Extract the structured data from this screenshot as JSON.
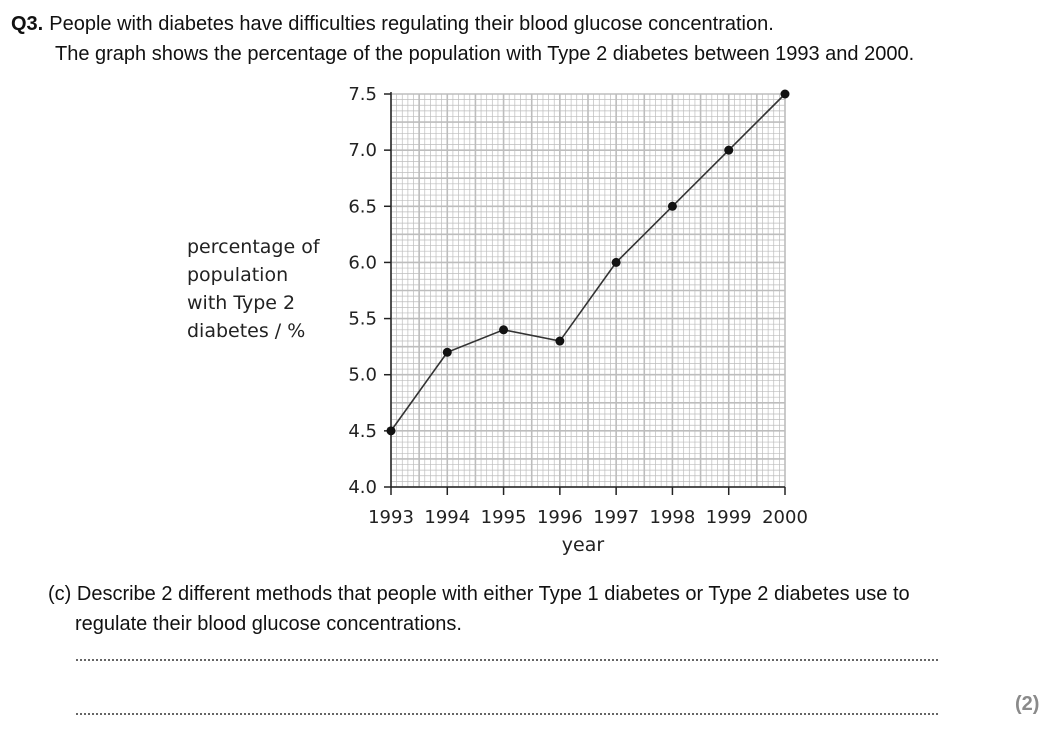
{
  "question": {
    "number": "Q3.",
    "line1": "People with diabetes have difficulties regulating their blood glucose concentration.",
    "line2": "The graph shows the percentage of the population with Type 2 diabetes between 1993 and 2000."
  },
  "chart_data": {
    "type": "line",
    "title": "",
    "xlabel": "year",
    "ylabel": "percentage of\npopulation\nwith Type 2\ndiabetes / %",
    "x": [
      1993,
      1994,
      1995,
      1996,
      1997,
      1998,
      1999,
      2000
    ],
    "series": [
      {
        "values": [
          4.5,
          5.2,
          5.4,
          5.3,
          6.0,
          6.5,
          7.0,
          7.5
        ]
      }
    ],
    "xlim": [
      1993,
      2000
    ],
    "ylim": [
      4.0,
      7.5
    ],
    "x_tick_labels": [
      "1993",
      "1994",
      "1995",
      "1996",
      "1997",
      "1998",
      "1999",
      "2000"
    ],
    "y_ticks": [
      4.0,
      4.5,
      5.0,
      5.5,
      6.0,
      6.5,
      7.0,
      7.5
    ],
    "y_tick_labels": [
      "4.0",
      "4.5",
      "5.0",
      "5.5",
      "6.0",
      "6.5",
      "7.0",
      "7.5"
    ],
    "grid": true,
    "colors": {
      "line": "#333333",
      "marker": "#111111",
      "grid": "#bdbdbd",
      "axis": "#222222"
    }
  },
  "part_c": {
    "line1": "(c) Describe 2 different methods that people with either Type 1 diabetes or Type 2 diabetes use to",
    "line2": "regulate their blood glucose concentrations."
  },
  "marks": "(2)"
}
